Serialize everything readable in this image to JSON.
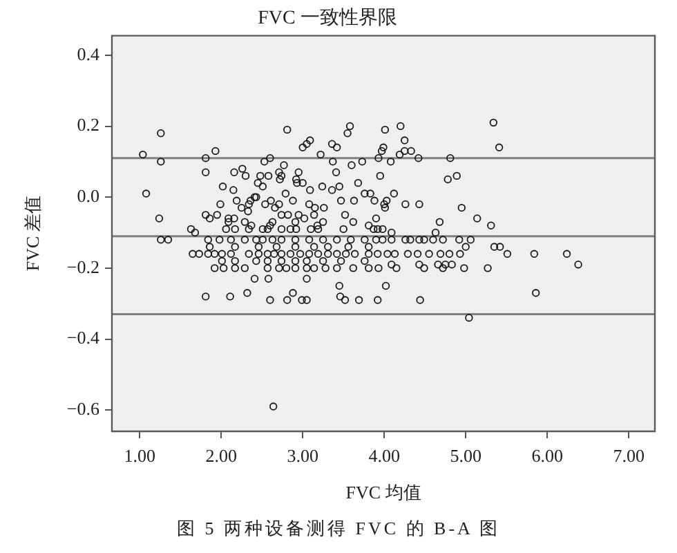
{
  "chart_data": {
    "type": "scatter",
    "title": "FVC 一致性界限",
    "xlabel": "FVC 均值",
    "ylabel": "FVC 差值",
    "annotations": [
      "图 5 两种设备测得 FVC 的 B-A 图"
    ],
    "xlim": [
      0.66,
      7.32
    ],
    "ylim": [
      -0.66,
      0.455
    ],
    "xticks": [
      {
        "value": 1,
        "label": "1.00"
      },
      {
        "value": 2,
        "label": "2.00"
      },
      {
        "value": 3,
        "label": "3.00"
      },
      {
        "value": 4,
        "label": "4.00"
      },
      {
        "value": 5,
        "label": "5.00"
      },
      {
        "value": 6,
        "label": "6.00"
      },
      {
        "value": 7,
        "label": "7.00"
      }
    ],
    "yticks": [
      {
        "value": -0.6,
        "label": "−0.6"
      },
      {
        "value": -0.4,
        "label": "−0.4"
      },
      {
        "value": -0.2,
        "label": "−0.2"
      },
      {
        "value": 0,
        "label": "0.0"
      },
      {
        "value": 0.2,
        "label": "0.2"
      },
      {
        "value": 0.4,
        "label": "0.4"
      }
    ],
    "marker": "circle",
    "color": "#1a1a1a",
    "ref_lines": [
      {
        "axis": "y",
        "value": 0.11,
        "color": "#808080"
      },
      {
        "axis": "y",
        "value": -0.11,
        "color": "#808080"
      },
      {
        "axis": "y",
        "value": -0.33,
        "color": "#808080"
      }
    ],
    "x": [
      1.04,
      1.26,
      1.26,
      1.08,
      1.24,
      1.63,
      1.81,
      1.93,
      1.81,
      1.81,
      1.86,
      1.99,
      2.02,
      2.06,
      2.09,
      2.16,
      2.15,
      2.16,
      2.19,
      2.26,
      2.3,
      2.25,
      2.33,
      2.36,
      2.34,
      2.41,
      2.43,
      2.37,
      2.48,
      2.45,
      2.51,
      2.53,
      2.6,
      2.54,
      2.6,
      2.61,
      2.58,
      2.71,
      2.77,
      2.72,
      2.74,
      2.81,
      2.66,
      2.71,
      2.79,
      2.88,
      2.92,
      2.95,
      2.93,
      3.0,
      3.05,
      3.09,
      3.0,
      3.09,
      3.08,
      3.22,
      3.24,
      3.15,
      3.26,
      3.37,
      3.36,
      3.42,
      3.41,
      3.36,
      3.45,
      3.47,
      3.55,
      3.58,
      3.6,
      3.73,
      3.68,
      3.63,
      3.76,
      3.83,
      3.88,
      3.93,
      3.99,
      4.01,
      3.95,
      4.0,
      3.9,
      2.82,
      2.95,
      3.02,
      3.14,
      3.18,
      3.1,
      3.52,
      3.5,
      3.62,
      3.81,
      2.57,
      2.74,
      2.92,
      4.2,
      4.25,
      3.97,
      4.08,
      4.19,
      4.25,
      4.33,
      4.42,
      4.81,
      4.78,
      4.89,
      5.34,
      5.41,
      4.12,
      4.03,
      4.01,
      4.26,
      4.43,
      4.95,
      5.14,
      5.31,
      4.68,
      3.92,
      3.98,
      4.09,
      4.63,
      3.9,
      3.98,
      4.09,
      4.26,
      4.32,
      4.43,
      4.49,
      4.6,
      4.72,
      4.92,
      5.06,
      5.0,
      5.35,
      5.42,
      3.92,
      4.04,
      4.13,
      4.29,
      4.41,
      4.55,
      4.69,
      4.8,
      4.93,
      5.51,
      5.84,
      6.24,
      4.09,
      4.43,
      4.66,
      4.75,
      4.83,
      6.38,
      3.93,
      4.15,
      4.49,
      4.72,
      4.98,
      5.27,
      4.02,
      5.86,
      4.44,
      5.04,
      1.68,
      1.26,
      1.35,
      1.65,
      1.73,
      1.81,
      2.11,
      2.32,
      2.6,
      2.64,
      2.81,
      2.99,
      3.05,
      2.88,
      3.46,
      3.52,
      3.69,
      3.92,
      2.41,
      2.58,
      3.05,
      3.45,
      1.84,
      1.98,
      2.12,
      2.29,
      2.43,
      2.51,
      2.63,
      2.74,
      2.91,
      3.08,
      3.25,
      3.42,
      3.59,
      3.76,
      1.86,
      2.17,
      2.46,
      2.68,
      2.91,
      3.14,
      3.31,
      3.56,
      3.81,
      1.84,
      1.92,
      2.01,
      2.12,
      2.34,
      2.46,
      2.57,
      2.65,
      2.74,
      2.85,
      2.97,
      3.08,
      3.19,
      3.31,
      3.42,
      3.53,
      3.64,
      3.81,
      2.01,
      2.17,
      2.43,
      2.57,
      2.74,
      2.91,
      3.05,
      3.25,
      3.47,
      3.76,
      1.92,
      2.03,
      2.17,
      2.29,
      2.57,
      2.71,
      2.8,
      2.91,
      3.05,
      3.14,
      3.28,
      3.42,
      3.62,
      3.81,
      2.17,
      2.34,
      2.51,
      2.85,
      3.19,
      3.87,
      2.09,
      2.29,
      2.63,
      2.91,
      3.25,
      1.95,
      2.74
    ],
    "values": [
      0.12,
      0.18,
      0.1,
      0.01,
      -0.06,
      -0.09,
      0.11,
      0.13,
      0.07,
      -0.05,
      -0.06,
      -0.02,
      0.03,
      -0.09,
      -0.06,
      -0.06,
      0.02,
      0.07,
      -0.01,
      0.08,
      0.06,
      -0.03,
      -0.04,
      -0.01,
      -0.02,
      0,
      0,
      -0.08,
      0.06,
      0.04,
      0.03,
      0.1,
      0.11,
      -0.02,
      -0.08,
      -0.01,
      0.06,
      0.07,
      0.09,
      0.05,
      0.06,
      0.19,
      -0.03,
      -0.02,
      0.01,
      -0.01,
      0.05,
      0.07,
      0.04,
      0.14,
      0.15,
      0.16,
      0.04,
      0.02,
      -0.02,
      0.12,
      0.03,
      -0.03,
      -0.03,
      0.1,
      0.15,
      0.14,
      0.07,
      0.02,
      0.03,
      -0.01,
      0.18,
      0.2,
      0.09,
      0.1,
      0.04,
      -0.01,
      0.01,
      0.01,
      -0.01,
      0.11,
      0.14,
      0.19,
      0.06,
      -0.02,
      -0.06,
      -0.05,
      -0.05,
      -0.06,
      -0.05,
      -0.08,
      -0.09,
      -0.05,
      -0.09,
      -0.07,
      -0.08,
      -0.09,
      -0.09,
      -0.09,
      0.2,
      0.16,
      0.13,
      0.1,
      0.12,
      0.13,
      0.13,
      0.11,
      0.11,
      0.05,
      0.06,
      0.21,
      0.14,
      0.01,
      -0.01,
      -0.03,
      -0.02,
      -0.02,
      -0.03,
      -0.06,
      -0.08,
      -0.07,
      -0.09,
      -0.09,
      -0.1,
      -0.1,
      -0.12,
      -0.12,
      -0.12,
      -0.12,
      -0.12,
      -0.12,
      -0.12,
      -0.12,
      -0.12,
      -0.12,
      -0.12,
      -0.14,
      -0.14,
      -0.14,
      -0.16,
      -0.16,
      -0.16,
      -0.16,
      -0.16,
      -0.16,
      -0.16,
      -0.16,
      -0.16,
      -0.16,
      -0.16,
      -0.16,
      -0.19,
      -0.19,
      -0.19,
      -0.19,
      -0.19,
      -0.19,
      -0.2,
      -0.2,
      -0.2,
      -0.2,
      -0.2,
      -0.2,
      -0.25,
      -0.27,
      -0.29,
      -0.34,
      -0.1,
      -0.12,
      -0.12,
      -0.16,
      -0.16,
      -0.28,
      -0.28,
      -0.27,
      -0.29,
      -0.59,
      -0.29,
      -0.29,
      -0.29,
      -0.27,
      -0.28,
      -0.29,
      -0.29,
      -0.29,
      -0.23,
      -0.23,
      -0.23,
      -0.25,
      -0.12,
      -0.12,
      -0.12,
      -0.12,
      -0.12,
      -0.12,
      -0.12,
      -0.12,
      -0.12,
      -0.12,
      -0.12,
      -0.12,
      -0.12,
      -0.12,
      -0.14,
      -0.14,
      -0.14,
      -0.14,
      -0.14,
      -0.14,
      -0.14,
      -0.14,
      -0.14,
      -0.16,
      -0.16,
      -0.16,
      -0.16,
      -0.16,
      -0.16,
      -0.16,
      -0.16,
      -0.16,
      -0.16,
      -0.16,
      -0.16,
      -0.16,
      -0.16,
      -0.16,
      -0.16,
      -0.16,
      -0.16,
      -0.18,
      -0.18,
      -0.18,
      -0.18,
      -0.18,
      -0.18,
      -0.18,
      -0.18,
      -0.18,
      -0.18,
      -0.2,
      -0.2,
      -0.2,
      -0.2,
      -0.2,
      -0.2,
      -0.2,
      -0.2,
      -0.2,
      -0.2,
      -0.2,
      -0.2,
      -0.2,
      -0.2,
      -0.09,
      -0.09,
      -0.09,
      -0.09,
      -0.09,
      -0.09,
      -0.07,
      -0.07,
      -0.07,
      -0.07,
      -0.07,
      -0.05,
      -0.05
    ]
  }
}
